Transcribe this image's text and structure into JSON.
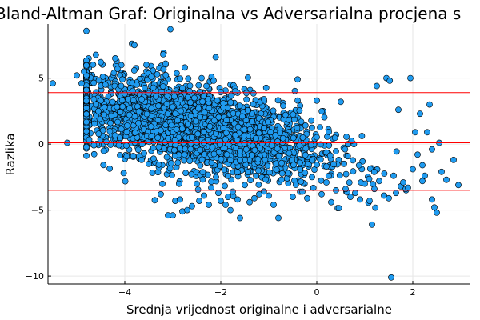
{
  "chart_data": {
    "type": "scatter",
    "title": "Bland-Altman Graf: Originalna vs Adversarialna procjena s",
    "xlabel": "Srednja vrijednost originalne i adversarialne",
    "ylabel": "Razlika",
    "xlim": [
      -5.6,
      3.2
    ],
    "ylim": [
      -10.6,
      9.1
    ],
    "xticks": [
      -4,
      -2,
      0,
      2
    ],
    "yticks": [
      -10,
      -5,
      0,
      5
    ],
    "tick_labels": {
      "x": [
        "−4",
        "−2",
        "0",
        "2"
      ],
      "y": [
        "−10",
        "−5",
        "0",
        "5"
      ]
    },
    "grid": true,
    "legend": "none",
    "colors": {
      "points": "#1f9bf0",
      "point_edge": "#000000",
      "reference_lines": "#ff0000"
    },
    "reference_lines": [
      {
        "y": 3.9
      },
      {
        "y": 0.1
      },
      {
        "y": -3.5
      }
    ],
    "series": [
      {
        "points": [
          [
            -5.5,
            4.6
          ],
          [
            -5.2,
            0.1
          ],
          [
            -5.0,
            5.2
          ],
          [
            -4.9,
            4.6
          ],
          [
            -4.85,
            5.5
          ],
          [
            -4.8,
            4.1
          ],
          [
            -4.6,
            3.0
          ],
          [
            -4.55,
            2.5
          ],
          [
            -4.5,
            3.3
          ],
          [
            -4.3,
            1.6
          ],
          [
            -4.2,
            6.5
          ],
          [
            -4.15,
            5.7
          ],
          [
            -4.1,
            5.2
          ],
          [
            -4.05,
            4.9
          ],
          [
            -4.0,
            3.8
          ],
          [
            -3.95,
            1.4
          ],
          [
            -3.9,
            2.7
          ],
          [
            -3.85,
            7.6
          ],
          [
            -3.8,
            7.5
          ],
          [
            -3.75,
            4.5
          ],
          [
            -3.7,
            -0.9
          ],
          [
            -3.65,
            -1.2
          ],
          [
            -3.6,
            -0.7
          ],
          [
            -3.55,
            6.0
          ],
          [
            -3.5,
            -1.5
          ],
          [
            -3.45,
            5.1
          ],
          [
            -3.4,
            -1.1
          ],
          [
            -3.35,
            3.6
          ],
          [
            -3.3,
            2.9
          ],
          [
            -3.25,
            -3.8
          ],
          [
            -3.2,
            6.8
          ],
          [
            -3.15,
            6.1
          ],
          [
            -3.1,
            -5.4
          ],
          [
            -3.05,
            8.7
          ],
          [
            -3.0,
            -5.4
          ],
          [
            -2.95,
            -4.3
          ],
          [
            -2.9,
            1.8
          ],
          [
            -2.85,
            -4.2
          ],
          [
            -2.8,
            -5.1
          ],
          [
            -2.75,
            5.8
          ],
          [
            -2.7,
            -5.0
          ],
          [
            -2.65,
            4.0
          ],
          [
            -2.6,
            -4.7
          ],
          [
            -2.55,
            3.5
          ],
          [
            -2.5,
            -3.0
          ],
          [
            -2.45,
            -4.3
          ],
          [
            -2.4,
            5.0
          ],
          [
            -2.35,
            -3.9
          ],
          [
            -2.3,
            4.4
          ],
          [
            -2.25,
            -4.6
          ],
          [
            -2.2,
            -3.3
          ],
          [
            -2.15,
            4.8
          ],
          [
            -2.1,
            -2.5
          ],
          [
            -2.05,
            -3.7
          ],
          [
            -2.0,
            -4.3
          ],
          [
            -1.95,
            3.1
          ],
          [
            -1.9,
            -4.6
          ],
          [
            -1.85,
            -4.0
          ],
          [
            -1.8,
            -5.0
          ],
          [
            -1.75,
            -3.6
          ],
          [
            -1.7,
            4.0
          ],
          [
            -1.65,
            -4.2
          ],
          [
            -1.6,
            -5.6
          ],
          [
            -1.55,
            2.1
          ],
          [
            -1.5,
            -3.1
          ],
          [
            -1.4,
            -4.4
          ],
          [
            -1.3,
            -4.1
          ],
          [
            -1.2,
            -3.8
          ],
          [
            -1.1,
            3.4
          ],
          [
            -1.0,
            -3.9
          ],
          [
            -0.9,
            -4.6
          ],
          [
            -0.8,
            -5.6
          ],
          [
            -0.7,
            2.9
          ],
          [
            -0.6,
            -2.2
          ],
          [
            -0.5,
            -4.0
          ],
          [
            -0.4,
            4.9
          ],
          [
            -0.3,
            -3.6
          ],
          [
            -0.2,
            -4.1
          ],
          [
            -0.1,
            -2.5
          ],
          [
            0.0,
            3.3
          ],
          [
            0.1,
            -3.8
          ],
          [
            0.2,
            -2.9
          ],
          [
            0.3,
            -4.4
          ],
          [
            0.4,
            -3.5
          ],
          [
            0.5,
            3.2
          ],
          [
            0.6,
            -3.4
          ],
          [
            0.7,
            -4.0
          ],
          [
            0.8,
            -3.7
          ],
          [
            0.9,
            -4.2
          ],
          [
            1.0,
            -3.0
          ],
          [
            1.1,
            -4.3
          ],
          [
            1.15,
            -6.1
          ],
          [
            1.2,
            -3.4
          ],
          [
            1.25,
            4.4
          ],
          [
            1.3,
            -2.8
          ],
          [
            1.4,
            -3.9
          ],
          [
            1.45,
            5.0
          ],
          [
            1.5,
            -4.1
          ],
          [
            1.52,
            4.8
          ],
          [
            1.55,
            -10.1
          ],
          [
            1.6,
            -2.4
          ],
          [
            1.65,
            -3.7
          ],
          [
            1.7,
            2.6
          ],
          [
            1.75,
            -3.2
          ],
          [
            1.8,
            -2.9
          ],
          [
            1.85,
            -3.4
          ],
          [
            1.9,
            -3.3
          ],
          [
            1.95,
            5.0
          ],
          [
            2.0,
            -1.9
          ],
          [
            2.05,
            0.9
          ],
          [
            2.1,
            -0.8
          ],
          [
            2.15,
            2.3
          ],
          [
            2.2,
            -1.6
          ],
          [
            2.25,
            -2.4
          ],
          [
            2.3,
            0.9
          ],
          [
            2.35,
            3.0
          ],
          [
            2.4,
            -4.2
          ],
          [
            2.45,
            -4.8
          ],
          [
            2.5,
            -5.2
          ],
          [
            2.55,
            0.1
          ],
          [
            2.6,
            -2.1
          ],
          [
            2.7,
            -2.7
          ],
          [
            2.85,
            -1.2
          ],
          [
            2.95,
            -3.1
          ],
          [
            2.4,
            -0.4
          ],
          [
            2.2,
            -2.8
          ]
        ]
      }
    ]
  }
}
